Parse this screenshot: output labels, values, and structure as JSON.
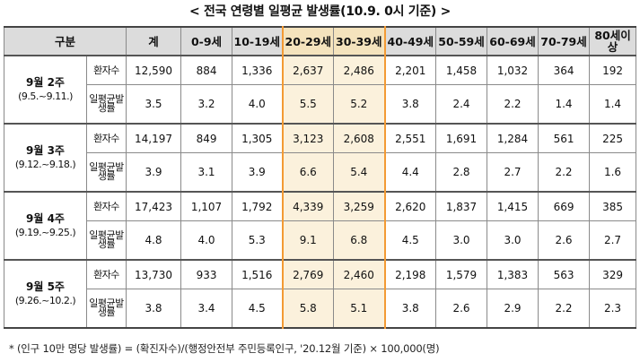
{
  "title": "< 전국 연령별 일평균 발생률(10.9. 0시 기준) >",
  "header": {
    "gubun": "구분",
    "columns": [
      "계",
      "0-9세",
      "10-19세",
      "20-29세",
      "30-39세",
      "40-49세",
      "50-59세",
      "60-69세",
      "70-79세",
      "80세이상"
    ]
  },
  "row_labels": {
    "cases": "환자수",
    "rate": "일평균발생률"
  },
  "weeks": [
    {
      "name": "9월 2주",
      "range": "(9.5.~9.11.)",
      "cases": [
        "12,590",
        "884",
        "1,336",
        "2,637",
        "2,486",
        "2,201",
        "1,458",
        "1,032",
        "364",
        "192"
      ],
      "rate": [
        "3.5",
        "3.2",
        "4.0",
        "5.5",
        "5.2",
        "3.8",
        "2.4",
        "2.2",
        "1.4",
        "1.4"
      ]
    },
    {
      "name": "9월 3주",
      "range": "(9.12.~9.18.)",
      "cases": [
        "14,197",
        "849",
        "1,305",
        "3,123",
        "2,608",
        "2,551",
        "1,691",
        "1,284",
        "561",
        "225"
      ],
      "rate": [
        "3.9",
        "3.1",
        "3.9",
        "6.6",
        "5.4",
        "4.4",
        "2.8",
        "2.7",
        "2.2",
        "1.6"
      ]
    },
    {
      "name": "9월 4주",
      "range": "(9.19.~9.25.)",
      "cases": [
        "17,423",
        "1,107",
        "1,792",
        "4,339",
        "3,259",
        "2,620",
        "1,837",
        "1,415",
        "669",
        "385"
      ],
      "rate": [
        "4.8",
        "4.0",
        "5.3",
        "9.1",
        "6.8",
        "4.5",
        "3.0",
        "3.0",
        "2.6",
        "2.7"
      ]
    },
    {
      "name": "9월 5주",
      "range": "(9.26.~10.2.)",
      "cases": [
        "13,730",
        "933",
        "1,516",
        "2,769",
        "2,460",
        "2,198",
        "1,579",
        "1,383",
        "563",
        "329"
      ],
      "rate": [
        "3.8",
        "3.4",
        "4.5",
        "5.8",
        "5.1",
        "3.8",
        "2.6",
        "2.9",
        "2.2",
        "2.3"
      ]
    }
  ],
  "highlight_columns": [
    "20-29세",
    "30-39세"
  ],
  "colors": {
    "highlight_fill": "#fbf1dc",
    "highlight_border": "#f39a34",
    "header_fill": "#dcdcdc"
  },
  "footnote": "* (인구 10만 명당 발생률) = (확진자수)/(행정안전부 주민등록인구, '20.12월 기준) × 100,000(명)"
}
